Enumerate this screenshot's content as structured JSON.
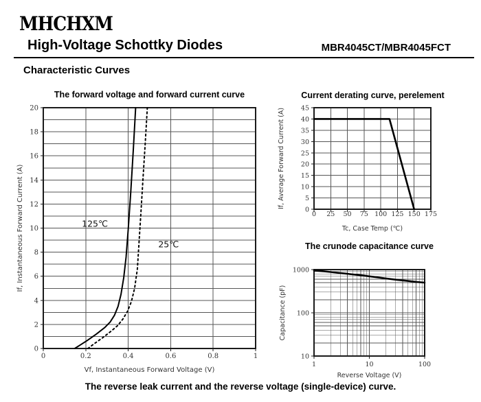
{
  "header": {
    "logo": "MHCHXM",
    "title": "High-Voltage Schottky Diodes",
    "part_number": "MBR4045CT/MBR4045FCT",
    "section_heading": "Characteristic Curves"
  },
  "footer": {
    "caption": "The reverse leak current and the reverse voltage (single-device) curve."
  },
  "colors": {
    "curve": "#000000",
    "grid": "#555555",
    "frame": "#1a1a1a",
    "text": "#333333"
  },
  "chart_data": [
    {
      "id": "forward",
      "type": "line",
      "title": "The forward voltage and forward current curve",
      "xlabel": "Vf, Instantaneous Forward Voltage (V)",
      "ylabel": "If, Instantaneous Forward Current (A)",
      "xscale": "linear",
      "yscale": "linear",
      "xlim": [
        0,
        1
      ],
      "ylim": [
        0,
        20
      ],
      "x_tick_step": 0.2,
      "x_tick_labels": [
        "0",
        "0.2",
        "0.4",
        "0.6",
        "0.8",
        "1"
      ],
      "y_grid_step": 1,
      "y_label_step": 2,
      "grid": true,
      "annotations": [
        {
          "text": "125℃",
          "x": 0.243,
          "y": 10.1
        },
        {
          "text": "25℃",
          "x": 0.59,
          "y": 8.4
        }
      ],
      "series": [
        {
          "name": "125℃",
          "style": "solid",
          "points": [
            [
              0.148,
              0
            ],
            [
              0.175,
              0.3
            ],
            [
              0.21,
              0.7
            ],
            [
              0.25,
              1.2
            ],
            [
              0.29,
              1.75
            ],
            [
              0.315,
              2.2
            ],
            [
              0.335,
              2.75
            ],
            [
              0.352,
              3.5
            ],
            [
              0.366,
              4.5
            ],
            [
              0.379,
              5.9
            ],
            [
              0.39,
              7.6
            ],
            [
              0.4,
              9.9
            ],
            [
              0.412,
              13
            ],
            [
              0.424,
              16.5
            ],
            [
              0.435,
              20
            ]
          ]
        },
        {
          "name": "25℃",
          "style": "dotted",
          "points": [
            [
              0.21,
              0
            ],
            [
              0.24,
              0.4
            ],
            [
              0.28,
              0.9
            ],
            [
              0.32,
              1.45
            ],
            [
              0.35,
              1.9
            ],
            [
              0.375,
              2.45
            ],
            [
              0.397,
              3.1
            ],
            [
              0.415,
              3.9
            ],
            [
              0.43,
              5
            ],
            [
              0.443,
              6.6
            ],
            [
              0.45,
              8.6
            ],
            [
              0.46,
              11.3
            ],
            [
              0.47,
              14.2
            ],
            [
              0.48,
              17
            ],
            [
              0.49,
              20
            ]
          ]
        }
      ]
    },
    {
      "id": "derating",
      "type": "line",
      "title": "Current derating curve, perelement",
      "xlabel": "Tc, Case Temp (℃)",
      "ylabel": "If, Average Forward Current (A)",
      "xscale": "linear",
      "yscale": "linear",
      "xlim": [
        0,
        175
      ],
      "ylim": [
        0,
        45
      ],
      "x_tick_step": 25,
      "y_grid_step": 5,
      "y_label_step": 5,
      "grid": true,
      "annotations": [],
      "series": [
        {
          "name": "derating",
          "style": "solid-thick",
          "points": [
            [
              0,
              40
            ],
            [
              113,
              40
            ],
            [
              150,
              0
            ]
          ]
        }
      ]
    },
    {
      "id": "capacitance",
      "type": "line",
      "title": "The crunode capacitance curve",
      "xlabel": "Reverse Voltage (V)",
      "ylabel": "Capacitance (pF)",
      "xscale": "log",
      "yscale": "log",
      "xlim": [
        1,
        100
      ],
      "ylim": [
        10,
        1000
      ],
      "grid": true,
      "annotations": [],
      "series": [
        {
          "name": "capacitance",
          "style": "solid-thick",
          "points": [
            [
              1,
              950
            ],
            [
              1.5,
              915
            ],
            [
              2,
              880
            ],
            [
              3,
              830
            ],
            [
              4,
              800
            ],
            [
              5,
              775
            ],
            [
              7,
              740
            ],
            [
              10,
              700
            ],
            [
              15,
              655
            ],
            [
              20,
              625
            ],
            [
              30,
              585
            ],
            [
              50,
              545
            ],
            [
              70,
              520
            ],
            [
              100,
              500
            ]
          ]
        }
      ]
    }
  ]
}
